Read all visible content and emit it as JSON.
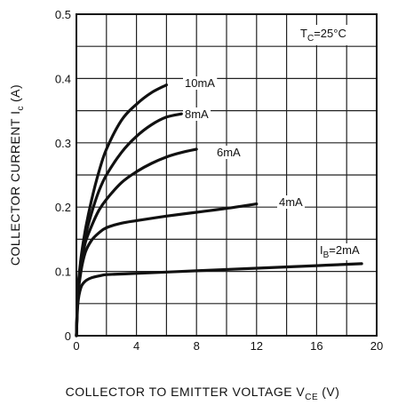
{
  "chart_data": {
    "type": "line",
    "xlabel": "COLLECTOR TO EMITTER VOLTAGE V",
    "xlabel_sub": "CE",
    "xlabel_unit": "(V)",
    "ylabel": "COLLECTOR CURRENT I",
    "ylabel_sub": "c",
    "ylabel_unit": "(A)",
    "xlim": [
      0,
      20
    ],
    "ylim": [
      0,
      0.5
    ],
    "xticks": [
      0,
      4,
      8,
      12,
      16,
      20
    ],
    "yticks": [
      0,
      0.1,
      0.2,
      0.3,
      0.4,
      0.5
    ],
    "xtick_labels": [
      "0",
      "4",
      "8",
      "12",
      "16",
      "20"
    ],
    "ytick_labels": [
      "0",
      "0.1",
      "0.2",
      "0.3",
      "0.4",
      "0.5"
    ],
    "grid": true,
    "annotation": {
      "main": "T",
      "sub": "C",
      "rest": "=25°C"
    },
    "series": [
      {
        "name": "10mA",
        "label_prefix": "",
        "label_sub": "",
        "x": [
          0,
          0.1,
          0.3,
          0.6,
          1.0,
          1.5,
          2.0,
          3.0,
          4.0,
          5.0,
          6.0
        ],
        "y": [
          0,
          0.07,
          0.12,
          0.165,
          0.21,
          0.255,
          0.29,
          0.335,
          0.36,
          0.378,
          0.39
        ]
      },
      {
        "name": "8mA",
        "label_prefix": "",
        "label_sub": "",
        "x": [
          0,
          0.1,
          0.3,
          0.6,
          1.0,
          1.5,
          2.0,
          3.0,
          4.0,
          5.0,
          6.0,
          7.0
        ],
        "y": [
          0,
          0.07,
          0.115,
          0.155,
          0.19,
          0.225,
          0.25,
          0.285,
          0.31,
          0.328,
          0.34,
          0.345
        ]
      },
      {
        "name": "6mA",
        "label_prefix": "",
        "label_sub": "",
        "x": [
          0,
          0.1,
          0.3,
          0.6,
          1.0,
          1.5,
          2.0,
          3.0,
          4.0,
          5.0,
          6.0,
          7.0,
          8.0
        ],
        "y": [
          0,
          0.065,
          0.11,
          0.145,
          0.17,
          0.195,
          0.212,
          0.238,
          0.255,
          0.268,
          0.278,
          0.285,
          0.29
        ]
      },
      {
        "name": "4mA",
        "label_prefix": "",
        "label_sub": "",
        "x": [
          0,
          0.1,
          0.3,
          0.6,
          1.0,
          1.5,
          2.0,
          3.0,
          4.0,
          6.0,
          8.0,
          10.0,
          12.0
        ],
        "y": [
          0,
          0.06,
          0.1,
          0.13,
          0.148,
          0.16,
          0.168,
          0.175,
          0.179,
          0.186,
          0.192,
          0.198,
          0.205
        ]
      },
      {
        "name": "2mA",
        "label_prefix": "I",
        "label_sub": "B",
        "label_rest": "=2mA",
        "x": [
          0,
          0.1,
          0.3,
          0.6,
          1.0,
          1.5,
          2.0,
          3.0,
          4.0,
          8.0,
          12.0,
          16.0,
          19.0
        ],
        "y": [
          0,
          0.05,
          0.075,
          0.085,
          0.09,
          0.093,
          0.095,
          0.096,
          0.097,
          0.101,
          0.105,
          0.109,
          0.112
        ]
      }
    ]
  }
}
